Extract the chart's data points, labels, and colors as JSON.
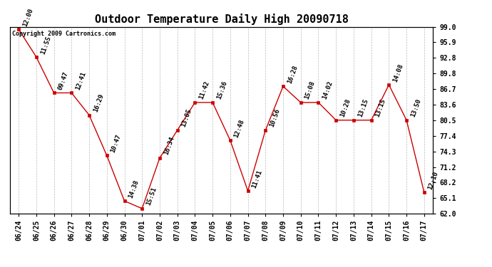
{
  "title": "Outdoor Temperature Daily High 20090718",
  "copyright": "Copyright 2009 Cartronics.com",
  "x_labels": [
    "06/24",
    "06/25",
    "06/26",
    "06/27",
    "06/28",
    "06/29",
    "06/30",
    "07/01",
    "07/02",
    "07/03",
    "07/04",
    "07/05",
    "07/06",
    "07/07",
    "07/08",
    "07/09",
    "07/10",
    "07/11",
    "07/12",
    "07/13",
    "07/14",
    "07/15",
    "07/16",
    "07/17"
  ],
  "y_values": [
    98.5,
    93.0,
    85.9,
    85.9,
    81.5,
    73.5,
    64.5,
    63.0,
    73.0,
    78.5,
    84.0,
    84.0,
    76.5,
    66.5,
    78.5,
    87.2,
    84.0,
    84.0,
    80.5,
    80.5,
    80.5,
    87.5,
    80.5,
    66.2
  ],
  "time_labels": [
    "12:00",
    "11:55",
    "09:47",
    "12:41",
    "16:29",
    "10:47",
    "14:38",
    "15:51",
    "16:34",
    "13:05",
    "11:42",
    "15:36",
    "12:48",
    "11:41",
    "10:56",
    "16:28",
    "15:08",
    "14:02",
    "10:28",
    "13:15",
    "13:15",
    "14:08",
    "13:50",
    "12:10"
  ],
  "y_min": 62.0,
  "y_max": 99.0,
  "y_ticks": [
    62.0,
    65.1,
    68.2,
    71.2,
    74.3,
    77.4,
    80.5,
    83.6,
    86.7,
    89.8,
    92.8,
    95.9,
    99.0
  ],
  "line_color": "#cc0000",
  "marker_color": "#cc0000",
  "bg_color": "#ffffff",
  "grid_color": "#bbbbbb",
  "title_fontsize": 11,
  "label_fontsize": 7,
  "annotation_fontsize": 6.5
}
